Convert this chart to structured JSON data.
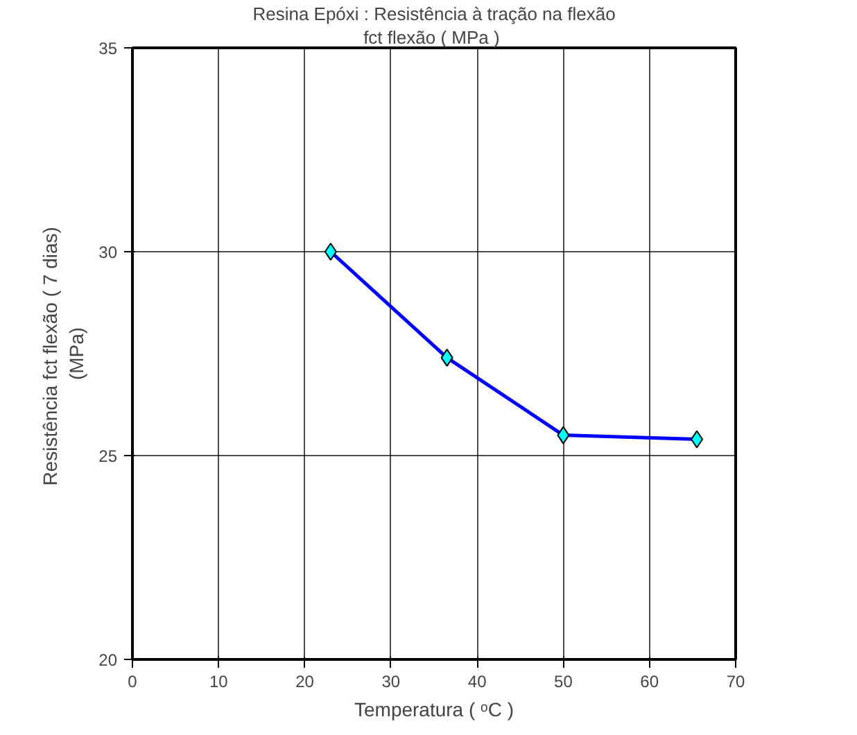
{
  "chart_data": {
    "type": "line",
    "title": "Resina Epóxi : Resistência à tração na flexão",
    "subtitle": "fct flexão  ( MPa )",
    "xlabel": "Temperatura ( ᵒC )",
    "ylabel": "Resistência fct flexão  ( 7 dias)\n(MPa)",
    "x": [
      23,
      36.5,
      50,
      65.5
    ],
    "series": [
      {
        "color": "#0000ff",
        "values": [
          30,
          27.4,
          25.5,
          25.4
        ]
      }
    ],
    "marker": "diamond",
    "xlim": [
      0,
      70
    ],
    "xticks": [
      0,
      10,
      20,
      30,
      40,
      50,
      60,
      70
    ],
    "ylim": [
      20,
      35
    ],
    "yticks": [
      20,
      25,
      30,
      35
    ],
    "grid": true
  }
}
